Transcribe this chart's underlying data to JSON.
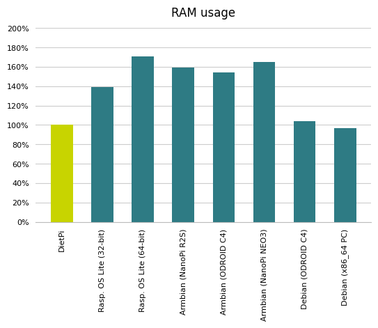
{
  "title": "RAM usage",
  "categories": [
    "DietPi",
    "Rasp. OS Lite (32-bit)",
    "Rasp. OS Lite (64-bit)",
    "Armbian (NanoPi R2S)",
    "Armbian (ODROID C4)",
    "Armbian (NanoPi NEO3)",
    "Debian (ODROID C4)",
    "Debian (x86_64 PC)"
  ],
  "values": [
    1.0,
    1.39,
    1.71,
    1.59,
    1.54,
    1.65,
    1.04,
    0.97
  ],
  "bar_colors": [
    "#c8d400",
    "#2e7b84",
    "#2e7b84",
    "#2e7b84",
    "#2e7b84",
    "#2e7b84",
    "#2e7b84",
    "#2e7b84"
  ],
  "ylim": [
    0,
    2.0
  ],
  "ytick_max": 2.0,
  "ytick_step": 0.2,
  "background_color": "#ffffff",
  "title_fontsize": 12,
  "tick_label_fontsize": 8.0,
  "grid_color": "#cccccc",
  "bar_width": 0.55
}
